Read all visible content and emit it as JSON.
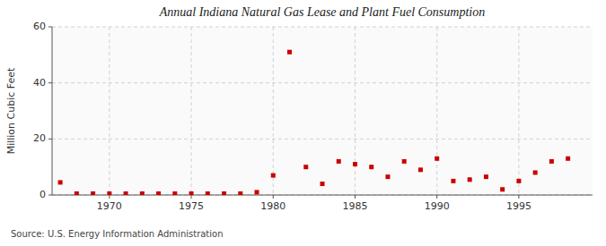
{
  "chart_data": {
    "type": "scatter",
    "title": "Annual Indiana Natural Gas Lease and Plant Fuel Consumption",
    "ylabel": "Million Cubic Feet",
    "annotation": "Source: U.S. Energy Information Administration",
    "x": [
      1967,
      1968,
      1969,
      1970,
      1971,
      1972,
      1973,
      1974,
      1975,
      1976,
      1977,
      1978,
      1979,
      1980,
      1981,
      1982,
      1983,
      1984,
      1985,
      1986,
      1987,
      1988,
      1989,
      1990,
      1991,
      1992,
      1993,
      1994,
      1995,
      1996,
      1997,
      1998
    ],
    "values": [
      4.5,
      0.5,
      0.5,
      0.5,
      0.5,
      0.5,
      0.5,
      0.5,
      0.5,
      0.5,
      0.5,
      0.5,
      1.0,
      7.0,
      51.0,
      10.0,
      4.0,
      12.0,
      11.0,
      10.0,
      6.5,
      12.0,
      9.0,
      13.0,
      5.0,
      5.5,
      6.5,
      2.0,
      5.0,
      8.0,
      12.0,
      13.0
    ],
    "xlim": [
      1966.5,
      1999.5
    ],
    "ylim": [
      0,
      60
    ],
    "xticks": [
      1970,
      1975,
      1980,
      1985,
      1990,
      1995
    ],
    "yticks": [
      0,
      20,
      40,
      60
    ],
    "grid": true,
    "color": "#cc0000",
    "marker": "square"
  }
}
